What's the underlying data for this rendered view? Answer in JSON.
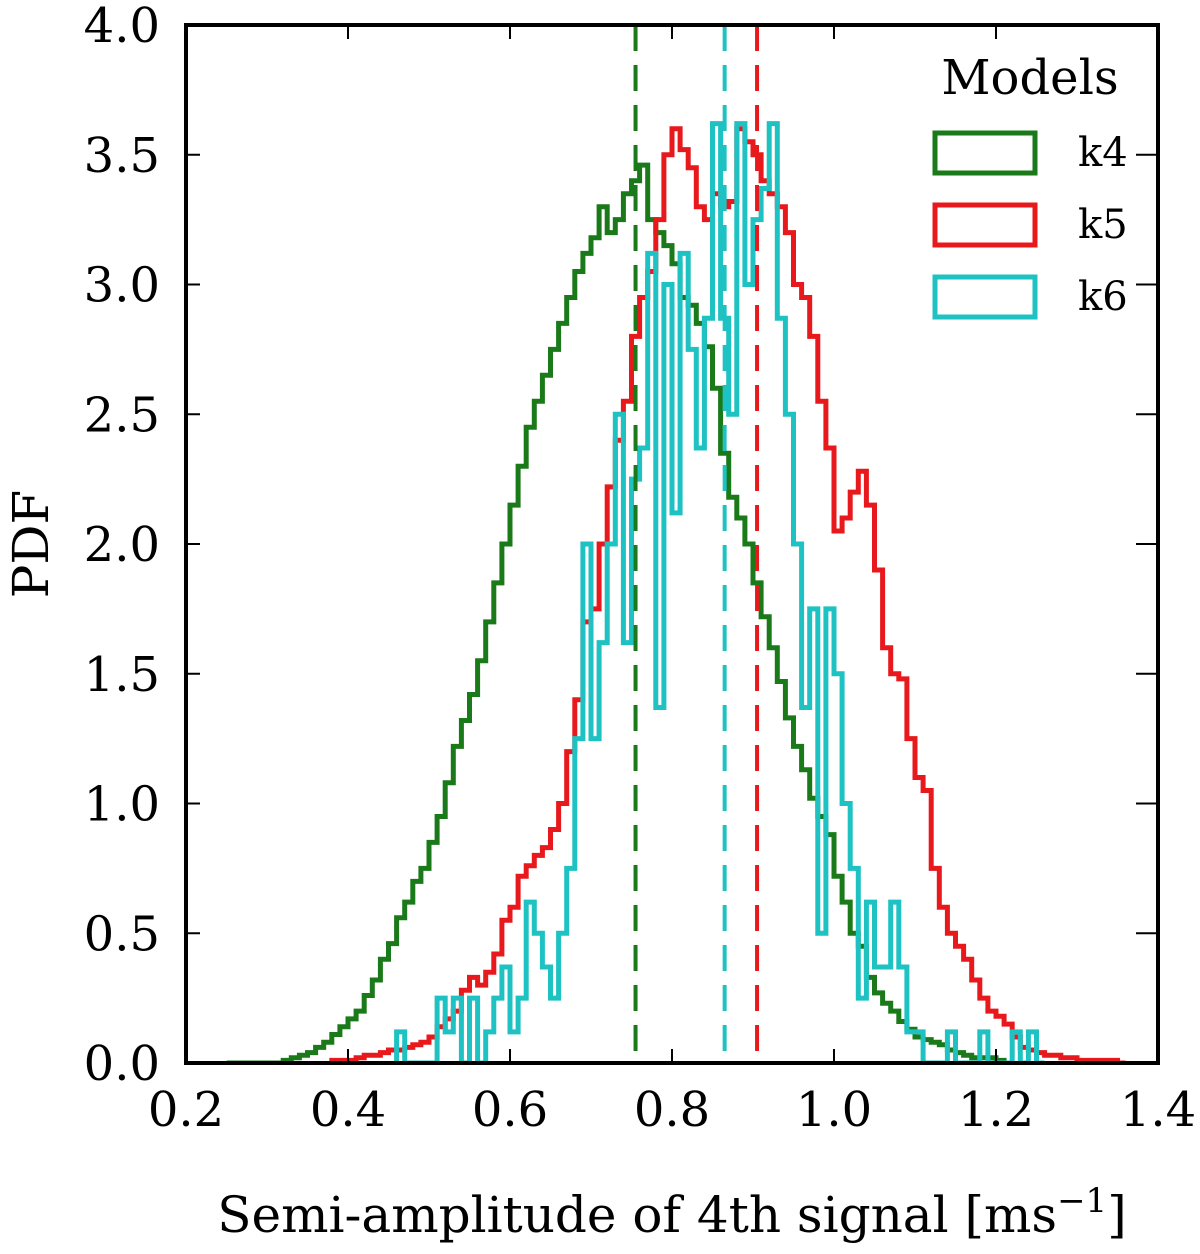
{
  "chart_data": {
    "type": "histogram",
    "xlabel": "Semi-amplitude of 4th signal [ms",
    "xlabel_sup": "−1",
    "xlabel_close": "]",
    "ylabel": "PDF",
    "xlim": [
      0.2,
      1.4
    ],
    "ylim": [
      0.0,
      4.0
    ],
    "xticks": [
      "0.2",
      "0.4",
      "0.6",
      "0.8",
      "1.0",
      "1.2",
      "1.4"
    ],
    "yticks": [
      "0.0",
      "0.5",
      "1.0",
      "1.5",
      "2.0",
      "2.5",
      "3.0",
      "3.5",
      "4.0"
    ],
    "legend": {
      "title": "Models",
      "position": "top-right"
    },
    "series": [
      {
        "name": "k4",
        "color": "#1a7a1a",
        "median": 0.755,
        "bin_width": 0.01,
        "x": [
          0.25,
          0.26,
          0.27,
          0.28,
          0.29,
          0.3,
          0.31,
          0.32,
          0.33,
          0.34,
          0.35,
          0.36,
          0.37,
          0.38,
          0.39,
          0.4,
          0.41,
          0.42,
          0.43,
          0.44,
          0.45,
          0.46,
          0.47,
          0.48,
          0.49,
          0.5,
          0.51,
          0.52,
          0.53,
          0.54,
          0.55,
          0.56,
          0.57,
          0.58,
          0.59,
          0.6,
          0.61,
          0.62,
          0.63,
          0.64,
          0.65,
          0.66,
          0.67,
          0.68,
          0.69,
          0.7,
          0.71,
          0.72,
          0.73,
          0.74,
          0.75,
          0.76,
          0.77,
          0.78,
          0.79,
          0.8,
          0.81,
          0.82,
          0.83,
          0.84,
          0.85,
          0.86,
          0.87,
          0.88,
          0.89,
          0.9,
          0.91,
          0.92,
          0.93,
          0.94,
          0.95,
          0.96,
          0.97,
          0.98,
          0.99,
          1.0,
          1.01,
          1.02,
          1.03,
          1.04,
          1.05,
          1.06,
          1.07,
          1.08,
          1.09,
          1.1,
          1.11,
          1.12,
          1.13,
          1.14,
          1.15,
          1.16,
          1.17,
          1.18,
          1.19,
          1.2,
          1.21
        ],
        "values": [
          0.0,
          0.0,
          0.0,
          0.0,
          0.0,
          0.0,
          0.0,
          0.01,
          0.02,
          0.03,
          0.04,
          0.06,
          0.08,
          0.11,
          0.14,
          0.17,
          0.2,
          0.26,
          0.32,
          0.4,
          0.46,
          0.56,
          0.62,
          0.7,
          0.75,
          0.85,
          0.95,
          1.08,
          1.22,
          1.32,
          1.42,
          1.55,
          1.7,
          1.85,
          2.0,
          2.15,
          2.3,
          2.45,
          2.55,
          2.65,
          2.75,
          2.85,
          2.95,
          3.05,
          3.12,
          3.18,
          3.3,
          3.2,
          3.25,
          3.35,
          3.4,
          3.46,
          3.25,
          3.2,
          3.15,
          3.08,
          2.95,
          2.92,
          2.85,
          2.76,
          2.6,
          2.35,
          2.18,
          2.1,
          2.0,
          1.85,
          1.72,
          1.6,
          1.47,
          1.33,
          1.22,
          1.13,
          1.02,
          0.95,
          0.88,
          0.72,
          0.62,
          0.5,
          0.45,
          0.33,
          0.27,
          0.23,
          0.2,
          0.16,
          0.13,
          0.1,
          0.09,
          0.08,
          0.07,
          0.05,
          0.04,
          0.03,
          0.02,
          0.02,
          0.02,
          0.01,
          0.0
        ]
      },
      {
        "name": "k5",
        "color": "#e8191c",
        "median": 0.905,
        "bin_width": 0.01,
        "x": [
          0.38,
          0.39,
          0.4,
          0.41,
          0.42,
          0.43,
          0.44,
          0.45,
          0.46,
          0.47,
          0.48,
          0.49,
          0.5,
          0.51,
          0.52,
          0.53,
          0.54,
          0.55,
          0.56,
          0.57,
          0.58,
          0.59,
          0.6,
          0.61,
          0.62,
          0.63,
          0.64,
          0.65,
          0.66,
          0.67,
          0.68,
          0.69,
          0.7,
          0.71,
          0.72,
          0.73,
          0.74,
          0.75,
          0.76,
          0.77,
          0.78,
          0.79,
          0.8,
          0.81,
          0.82,
          0.83,
          0.84,
          0.85,
          0.86,
          0.87,
          0.88,
          0.89,
          0.9,
          0.91,
          0.92,
          0.93,
          0.94,
          0.95,
          0.96,
          0.97,
          0.98,
          0.99,
          1.0,
          1.01,
          1.02,
          1.03,
          1.04,
          1.05,
          1.06,
          1.07,
          1.08,
          1.09,
          1.1,
          1.11,
          1.12,
          1.13,
          1.14,
          1.15,
          1.16,
          1.17,
          1.18,
          1.19,
          1.2,
          1.21,
          1.22,
          1.23,
          1.24,
          1.25,
          1.26,
          1.27,
          1.28,
          1.29,
          1.3,
          1.31,
          1.32,
          1.33,
          1.34,
          1.35
        ],
        "values": [
          0.01,
          0.01,
          0.01,
          0.02,
          0.03,
          0.03,
          0.04,
          0.05,
          0.05,
          0.06,
          0.07,
          0.08,
          0.1,
          0.14,
          0.17,
          0.2,
          0.28,
          0.33,
          0.3,
          0.35,
          0.42,
          0.55,
          0.6,
          0.72,
          0.76,
          0.8,
          0.83,
          0.9,
          1.0,
          1.2,
          1.4,
          1.7,
          1.75,
          2.0,
          2.22,
          2.4,
          2.55,
          2.8,
          2.95,
          3.05,
          3.25,
          3.5,
          3.6,
          3.52,
          3.45,
          3.3,
          3.25,
          3.35,
          3.3,
          3.32,
          3.6,
          3.55,
          3.5,
          3.4,
          3.35,
          3.3,
          3.2,
          3.0,
          2.95,
          2.8,
          2.55,
          2.37,
          2.05,
          2.1,
          2.2,
          2.28,
          2.15,
          1.9,
          1.6,
          1.5,
          1.48,
          1.25,
          1.1,
          1.05,
          0.75,
          0.6,
          0.5,
          0.45,
          0.4,
          0.32,
          0.25,
          0.2,
          0.18,
          0.15,
          0.1,
          0.06,
          0.05,
          0.04,
          0.03,
          0.03,
          0.02,
          0.02,
          0.01,
          0.01,
          0.01,
          0.01,
          0.01,
          0.0
        ]
      },
      {
        "name": "k6",
        "color": "#1fc2c2",
        "median": 0.865,
        "bin_width": 0.01,
        "x": [
          0.46,
          0.47,
          0.48,
          0.49,
          0.5,
          0.51,
          0.52,
          0.53,
          0.54,
          0.55,
          0.56,
          0.57,
          0.58,
          0.59,
          0.6,
          0.61,
          0.62,
          0.63,
          0.64,
          0.65,
          0.66,
          0.67,
          0.68,
          0.69,
          0.7,
          0.71,
          0.72,
          0.73,
          0.74,
          0.75,
          0.76,
          0.77,
          0.78,
          0.79,
          0.8,
          0.81,
          0.82,
          0.83,
          0.84,
          0.85,
          0.86,
          0.87,
          0.88,
          0.89,
          0.9,
          0.91,
          0.92,
          0.93,
          0.94,
          0.95,
          0.96,
          0.97,
          0.98,
          0.99,
          1.0,
          1.01,
          1.02,
          1.03,
          1.04,
          1.05,
          1.06,
          1.07,
          1.08,
          1.09,
          1.1,
          1.11,
          1.12,
          1.13,
          1.14,
          1.15,
          1.16,
          1.17,
          1.18,
          1.19,
          1.2,
          1.21,
          1.22,
          1.23,
          1.24,
          1.25
        ],
        "values": [
          0.12,
          0.0,
          0.0,
          0.0,
          0.0,
          0.25,
          0.12,
          0.25,
          0.0,
          0.25,
          0.0,
          0.12,
          0.25,
          0.37,
          0.12,
          0.25,
          0.62,
          0.5,
          0.37,
          0.25,
          0.5,
          0.75,
          1.25,
          2.0,
          1.25,
          1.62,
          2.0,
          2.5,
          1.62,
          2.25,
          2.37,
          3.12,
          1.37,
          3.0,
          2.12,
          3.12,
          2.75,
          2.37,
          2.87,
          3.62,
          2.87,
          2.5,
          3.62,
          3.0,
          3.25,
          3.37,
          3.62,
          2.87,
          2.5,
          2.0,
          1.37,
          1.75,
          0.5,
          1.75,
          1.5,
          1.0,
          0.75,
          0.25,
          0.62,
          0.37,
          0.37,
          0.62,
          0.37,
          0.12,
          0.12,
          0.0,
          0.0,
          0.0,
          0.12,
          0.0,
          0.0,
          0.0,
          0.12,
          0.0,
          0.0,
          0.0,
          0.12,
          0.0,
          0.12,
          0.0
        ]
      }
    ]
  }
}
